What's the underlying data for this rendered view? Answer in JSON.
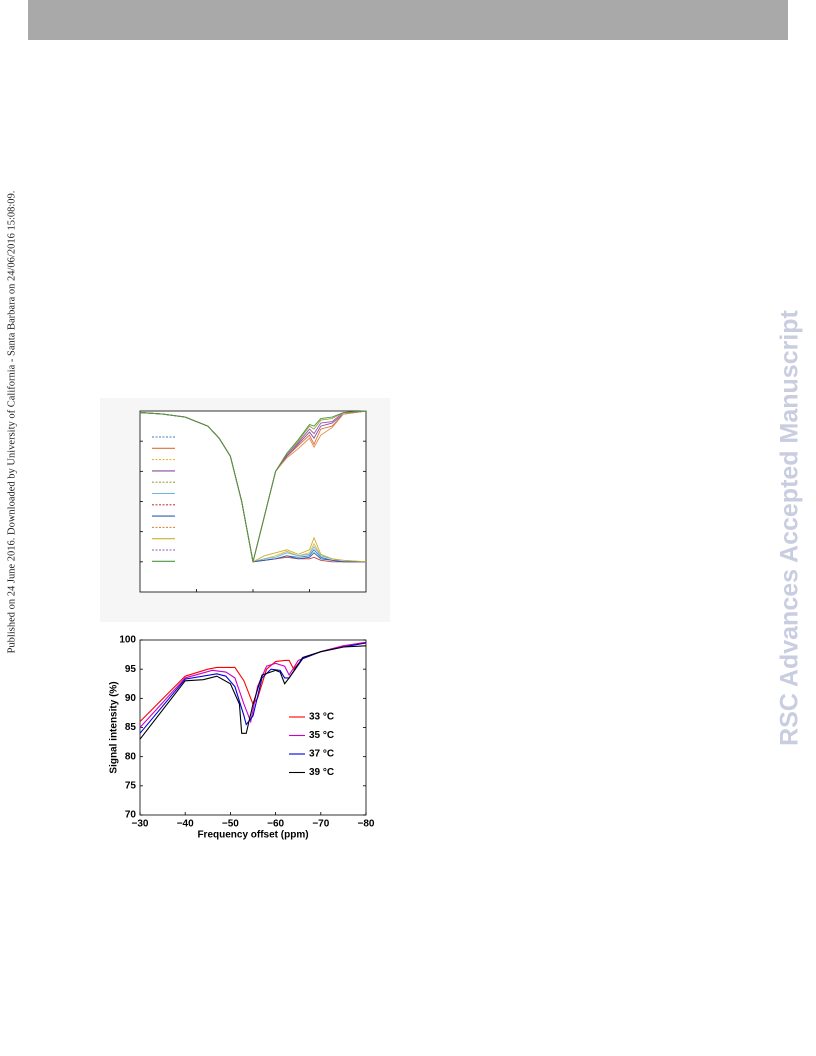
{
  "side_note": "Published on 24 June 2016. Downloaded by University of California - Santa Barbara on 24/06/2016 15:08:09.",
  "watermark": "RSC Advances Accepted Manuscript",
  "chart_data": [
    {
      "type": "line",
      "xlim": [
        -30,
        -80
      ],
      "ylim": [
        0,
        60
      ],
      "xticks": [
        -42.5,
        -55,
        -67.5
      ],
      "yticks": [
        10,
        20,
        30,
        40,
        50
      ],
      "x": [
        -30,
        -35,
        -40,
        -45,
        -47.5,
        -50,
        -52.5,
        -55,
        -57.5,
        -60,
        -62.5,
        -65,
        -67.5,
        -68.5,
        -70,
        -72.5,
        -75,
        -80
      ],
      "series": [
        {
          "color": "#3a7fc0",
          "dash": true,
          "values": [
            59.5,
            59,
            58,
            55,
            51,
            45,
            30,
            10,
            10.5,
            11,
            12,
            11.5,
            12,
            14,
            11.5,
            10.5,
            10,
            10
          ]
        },
        {
          "color": "#d9733a",
          "dash": false,
          "values": [
            59.5,
            59,
            58,
            55,
            51,
            45,
            30,
            10,
            25,
            40,
            45,
            48.5,
            52,
            49,
            54,
            55,
            59,
            60
          ]
        },
        {
          "color": "#e6b840",
          "dash": true,
          "values": [
            59.5,
            59,
            58,
            55,
            51,
            45,
            30,
            10,
            11,
            12,
            13.5,
            12,
            13,
            16,
            12,
            11,
            10.5,
            10
          ]
        },
        {
          "color": "#8a4a9a",
          "dash": false,
          "values": [
            59.5,
            59,
            58,
            55,
            51,
            45,
            30,
            10,
            25,
            40,
            45,
            49,
            53,
            51,
            55,
            56,
            59,
            60
          ]
        },
        {
          "color": "#a0a040",
          "dash": true,
          "values": [
            59.5,
            59,
            58,
            55,
            51,
            45,
            30,
            10,
            25,
            40,
            46,
            50,
            55,
            54,
            57,
            57.5,
            59.5,
            60
          ]
        },
        {
          "color": "#6ab8e0",
          "dash": false,
          "values": [
            59.5,
            59,
            58,
            55,
            51,
            45,
            30,
            10,
            11,
            11.5,
            13,
            12,
            12.5,
            15,
            12,
            11,
            10,
            10
          ]
        },
        {
          "color": "#c84040",
          "dash": true,
          "values": [
            59.5,
            59,
            58,
            55,
            51,
            45,
            30,
            10,
            10.5,
            11,
            11.5,
            11,
            11,
            11.5,
            10.5,
            10,
            10,
            10
          ]
        },
        {
          "color": "#2a60b0",
          "dash": false,
          "values": [
            59.5,
            59,
            58,
            55,
            51,
            45,
            30,
            10,
            10.5,
            11,
            12,
            11,
            11.5,
            13,
            11,
            10.5,
            10,
            10
          ]
        },
        {
          "color": "#e08a4a",
          "dash": true,
          "values": [
            59.5,
            59,
            58,
            55,
            51,
            45,
            30,
            10,
            25,
            40,
            44.5,
            47.5,
            51,
            48,
            52,
            54.5,
            59,
            60
          ]
        },
        {
          "color": "#c8b030",
          "dash": false,
          "values": [
            59.5,
            59,
            58,
            55,
            51,
            45,
            30,
            10,
            12,
            13,
            14,
            12.5,
            14,
            18,
            12.5,
            11,
            10.5,
            10
          ]
        },
        {
          "color": "#9a5aa8",
          "dash": true,
          "values": [
            59.5,
            59,
            58,
            55,
            51,
            45,
            30,
            10,
            25,
            40,
            45.5,
            49.5,
            54,
            52.5,
            56,
            56.5,
            59.5,
            60
          ]
        },
        {
          "color": "#4a9a3a",
          "dash": false,
          "values": [
            59.5,
            59,
            58,
            55,
            51,
            45,
            30,
            10,
            25,
            40,
            46,
            50.5,
            55.5,
            55,
            57.5,
            58,
            59.5,
            60
          ]
        }
      ]
    },
    {
      "type": "line",
      "xlabel": "Frequency offset (ppm)",
      "ylabel": "Signal intensity (%)",
      "xlim": [
        -30,
        -80
      ],
      "ylim": [
        70,
        100
      ],
      "xticks": [
        {
          "value": -30,
          "label": "−30"
        },
        {
          "value": -40,
          "label": "−40"
        },
        {
          "value": -50,
          "label": "−50"
        },
        {
          "value": -60,
          "label": "−60"
        },
        {
          "value": -70,
          "label": "−70"
        },
        {
          "value": -80,
          "label": "−80"
        }
      ],
      "yticks": [
        70,
        75,
        80,
        85,
        90,
        95,
        100
      ],
      "series": [
        {
          "name": "33 °C",
          "color": "#ff0000",
          "x": [
            -30,
            -40,
            -45,
            -47,
            -51,
            -53,
            -55,
            -56,
            -58,
            -60,
            -62,
            -63,
            -64,
            -66,
            -70,
            -75,
            -80
          ],
          "values": [
            86,
            93.8,
            95,
            95.3,
            95.3,
            93,
            89,
            90,
            95,
            96.3,
            96.5,
            96.5,
            95,
            96.8,
            98,
            99,
            99.6
          ]
        },
        {
          "name": "35 °C",
          "color": "#cc00cc",
          "x": [
            -30,
            -40,
            -46,
            -49,
            -51,
            -53,
            -54.5,
            -56,
            -58,
            -60,
            -62,
            -63,
            -65,
            -70,
            -75,
            -80
          ],
          "values": [
            85,
            93.5,
            94.8,
            94.5,
            93.5,
            89,
            86,
            92,
            95.5,
            96,
            95.5,
            94,
            96.5,
            98,
            99,
            99.5
          ]
        },
        {
          "name": "37 °C",
          "color": "#0000dd",
          "x": [
            -30,
            -40,
            -47,
            -49,
            -51,
            -53,
            -53.5,
            -55,
            -57,
            -59,
            -61,
            -62,
            -63,
            -66,
            -70,
            -75,
            -80
          ],
          "values": [
            84,
            93.3,
            94.2,
            93.8,
            92,
            87,
            85.5,
            87,
            93.5,
            95,
            94.8,
            93.5,
            93.5,
            96.8,
            98,
            98.8,
            99.5
          ]
        },
        {
          "name": "39 °C",
          "color": "#000000",
          "x": [
            -30,
            -40,
            -44,
            -47,
            -50,
            -52,
            -52.5,
            -53.5,
            -55,
            -57,
            -60,
            -61,
            -62,
            -63,
            -66,
            -70,
            -75,
            -80
          ],
          "values": [
            83,
            93,
            93.2,
            93.8,
            92.5,
            89,
            84,
            84,
            89,
            94,
            94.8,
            94.5,
            92.5,
            93.5,
            97,
            98,
            98.8,
            99
          ]
        }
      ]
    }
  ]
}
